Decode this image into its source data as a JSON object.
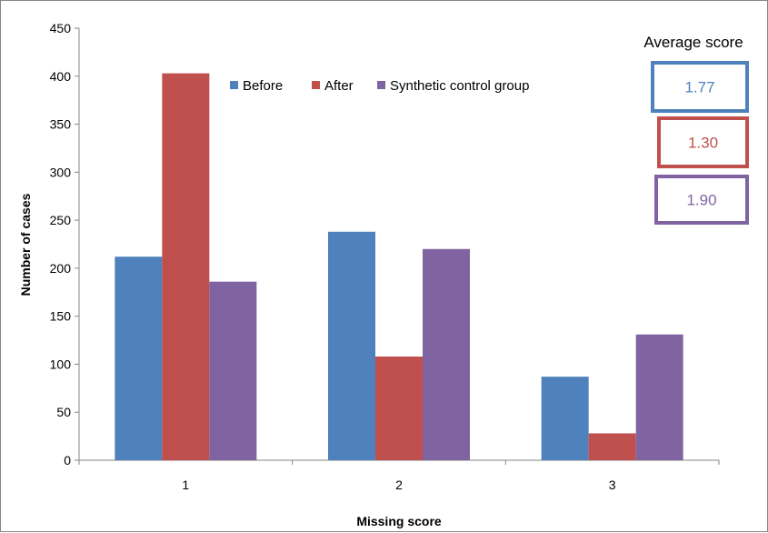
{
  "chart_data": {
    "type": "bar",
    "categories": [
      "1",
      "2",
      "3"
    ],
    "series": [
      {
        "name": "Before",
        "color": "#4F81BD",
        "values": [
          212,
          238,
          87
        ]
      },
      {
        "name": "After",
        "color": "#C0504D",
        "values": [
          403,
          108,
          28
        ]
      },
      {
        "name": "Synthetic control group",
        "color": "#8064A2",
        "values": [
          186,
          220,
          131
        ]
      }
    ],
    "xlabel": "Missing score",
    "ylabel": "Number of cases",
    "ylim": [
      0,
      450
    ],
    "yticks": [
      0,
      50,
      100,
      150,
      200,
      250,
      300,
      350,
      400,
      450
    ],
    "grid": false,
    "legend_position": "top"
  },
  "average_score": {
    "title": "Average score",
    "boxes": [
      {
        "value": "1.77",
        "color": "#4F81BD"
      },
      {
        "value": "1.30",
        "color": "#C0504D"
      },
      {
        "value": "1.90",
        "color": "#8064A2"
      }
    ]
  }
}
